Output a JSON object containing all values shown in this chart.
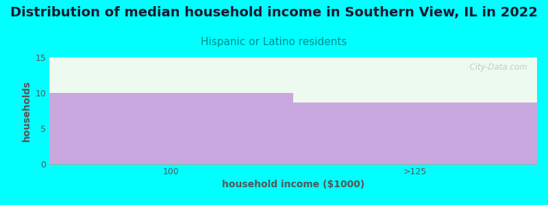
{
  "title": "Distribution of median household income in Southern View, IL in 2022",
  "subtitle": "Hispanic or Latino residents",
  "categories": [
    "100",
    ">125"
  ],
  "values": [
    10,
    8.7
  ],
  "bar_color": "#c9a8e0",
  "xlabel": "household income ($1000)",
  "ylabel": "households",
  "ylim": [
    0,
    15
  ],
  "yticks": [
    0,
    5,
    10,
    15
  ],
  "background_color": "#00ffff",
  "plot_bg_color": "#edfaef",
  "title_fontsize": 14,
  "subtitle_fontsize": 11,
  "subtitle_color": "#008b8b",
  "axis_label_fontsize": 10,
  "tick_fontsize": 9,
  "watermark": "  City-Data.com"
}
